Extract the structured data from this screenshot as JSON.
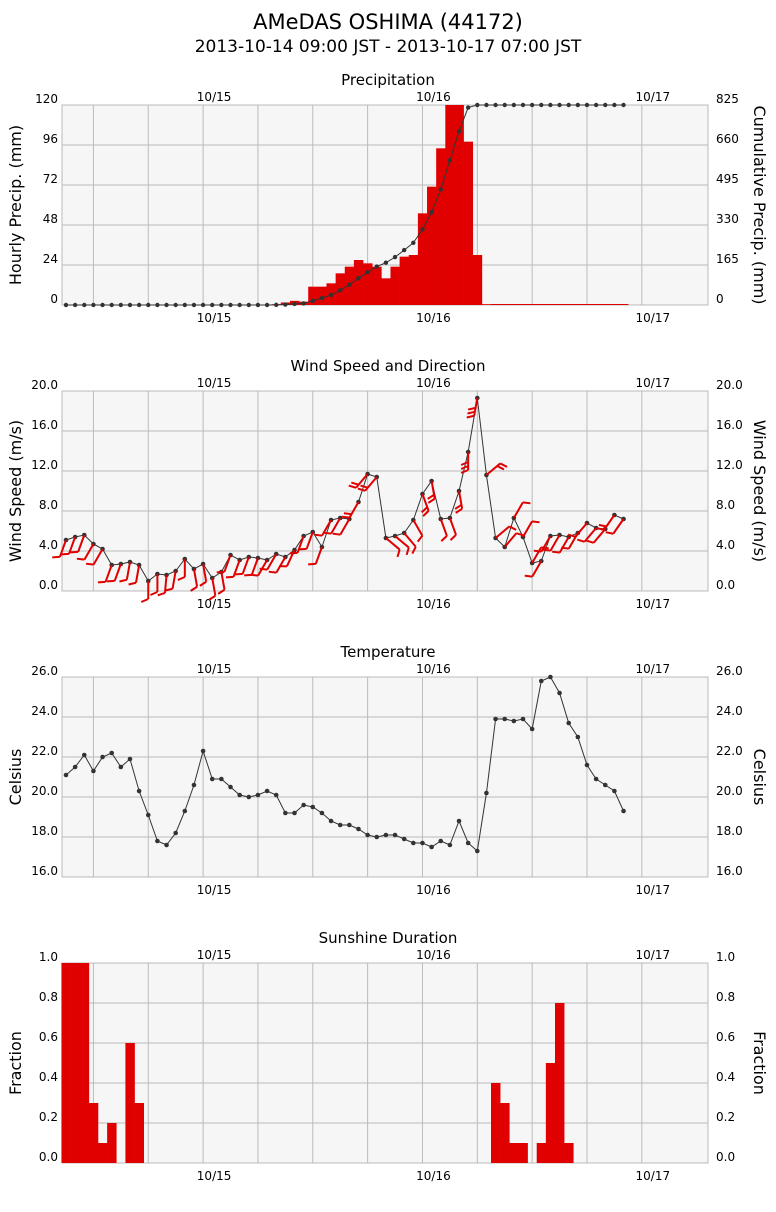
{
  "header": {
    "title": "AMeDAS OSHIMA (44172)",
    "subtitle": "2013-10-14 09:00 JST - 2013-10-17 07:00 JST"
  },
  "colors": {
    "bar": "#e00000",
    "barb": "#e00000",
    "line": "#333333",
    "plot_bg": "#f6f6f6",
    "grid": "#bbbbbb"
  },
  "chart_data": [
    {
      "type": "bar",
      "title": "Precipitation",
      "ylabel": "Hourly Precip. (mm)",
      "ylabel_right": "Cumulative Precip. (mm)",
      "hours": [
        0,
        62
      ],
      "day_ticks": [
        {
          "hour": 15,
          "label": "10/15"
        },
        {
          "hour": 39,
          "label": "10/16"
        },
        {
          "hour": 63,
          "label": "10/17"
        }
      ],
      "ylim": [
        0,
        120
      ],
      "yticks": [
        0,
        24,
        48,
        72,
        96,
        120
      ],
      "ylim_right": [
        0,
        825
      ],
      "yticks_right": [
        0,
        165,
        330,
        495,
        660,
        825
      ],
      "series": [
        {
          "name": "Hourly Precip.",
          "kind": "bar",
          "values": [
            0,
            0,
            0,
            0,
            0,
            0,
            0,
            0,
            0,
            0,
            0,
            0,
            0,
            0,
            0,
            0,
            0,
            0,
            0,
            0,
            0,
            0,
            0,
            0.5,
            1.5,
            2.5,
            2,
            11,
            11,
            13,
            19,
            23,
            27,
            25,
            23,
            16,
            23,
            29,
            30,
            55,
            71,
            94,
            120,
            120,
            98,
            30,
            0.5,
            0,
            0,
            0,
            0,
            0,
            0,
            0,
            0,
            0,
            0,
            0,
            0,
            0,
            0,
            0
          ]
        },
        {
          "name": "Cumulative Precip.",
          "kind": "line",
          "axis": "right",
          "values": [
            0,
            0,
            0,
            0,
            0,
            0,
            0,
            0,
            0,
            0,
            0,
            0,
            0,
            0,
            0,
            0,
            0,
            0,
            0,
            0,
            0,
            0,
            0,
            0.5,
            2,
            4.5,
            6.5,
            17.5,
            28.5,
            41.5,
            60.5,
            83.5,
            110.5,
            135.5,
            158.5,
            174.5,
            197.5,
            226.5,
            256.5,
            311.5,
            382.5,
            476.5,
            596.5,
            716.5,
            814.5,
            825,
            825,
            825,
            825,
            825,
            825,
            825,
            825,
            825,
            825,
            825,
            825,
            825,
            825,
            825,
            825,
            825
          ]
        }
      ]
    },
    {
      "type": "line",
      "title": "Wind Speed and Direction",
      "ylabel": "Wind Speed (m/s)",
      "ylabel_right": "Wind Speed (m/s)",
      "hours": [
        0,
        62
      ],
      "day_ticks": [
        {
          "hour": 15,
          "label": "10/15"
        },
        {
          "hour": 39,
          "label": "10/16"
        },
        {
          "hour": 63,
          "label": "10/17"
        }
      ],
      "ylim": [
        0,
        20
      ],
      "yticks": [
        "0.0",
        "4.0",
        "8.0",
        "12.0",
        "16.0",
        "20.0"
      ],
      "series": [
        {
          "name": "Wind Speed",
          "values": [
            5.1,
            5.4,
            5.6,
            4.7,
            4.2,
            2.6,
            2.7,
            2.9,
            2.6,
            1.0,
            1.7,
            1.6,
            2.0,
            3.2,
            2.2,
            2.7,
            1.3,
            1.9,
            3.6,
            3.1,
            3.4,
            3.3,
            3.1,
            3.7,
            3.4,
            4.1,
            5.5,
            5.9,
            4.4,
            7.1,
            7.3,
            7.2,
            8.9,
            11.7,
            11.4,
            5.3,
            5.5,
            5.8,
            7.1,
            9.7,
            11.0,
            7.2,
            7.3,
            10.0,
            13.9,
            19.3,
            11.6,
            5.3,
            4.4,
            7.3,
            5.4,
            2.8,
            3.0,
            5.5,
            5.6,
            5.4,
            5.8,
            6.8,
            6.3,
            6.2,
            7.6,
            7.2
          ]
        },
        {
          "name": "Wind Direction",
          "values": [
            200,
            200,
            200,
            210,
            210,
            200,
            200,
            190,
            190,
            180,
            180,
            185,
            190,
            180,
            170,
            170,
            170,
            170,
            200,
            200,
            200,
            200,
            210,
            210,
            210,
            205,
            200,
            200,
            200,
            210,
            210,
            210,
            210,
            220,
            220,
            130,
            130,
            140,
            150,
            160,
            170,
            160,
            160,
            170,
            180,
            190,
            50,
            50,
            40,
            30,
            30,
            30,
            210,
            210,
            210,
            210,
            210,
            220,
            220,
            220,
            215,
            215
          ]
        }
      ]
    },
    {
      "type": "line",
      "title": "Temperature",
      "ylabel": "Celsius",
      "ylabel_right": "Celsius",
      "hours": [
        0,
        62
      ],
      "day_ticks": [
        {
          "hour": 15,
          "label": "10/15"
        },
        {
          "hour": 39,
          "label": "10/16"
        },
        {
          "hour": 63,
          "label": "10/17"
        }
      ],
      "ylim": [
        16,
        26
      ],
      "yticks": [
        "16.0",
        "18.0",
        "20.0",
        "22.0",
        "24.0",
        "26.0"
      ],
      "series": [
        {
          "name": "Temperature",
          "values": [
            21.1,
            21.5,
            22.1,
            21.3,
            22.0,
            22.2,
            21.5,
            21.9,
            20.3,
            19.1,
            17.8,
            17.6,
            18.2,
            19.3,
            20.6,
            22.3,
            20.9,
            20.9,
            20.5,
            20.1,
            20.0,
            20.1,
            20.3,
            20.1,
            19.2,
            19.2,
            19.6,
            19.5,
            19.2,
            18.8,
            18.6,
            18.6,
            18.4,
            18.1,
            18.0,
            18.1,
            18.1,
            17.9,
            17.7,
            17.7,
            17.5,
            17.8,
            17.6,
            18.8,
            17.7,
            17.3,
            20.2,
            23.9,
            23.9,
            23.8,
            23.9,
            23.4,
            25.8,
            26.0,
            25.2,
            23.7,
            23.0,
            21.6,
            20.9,
            20.6,
            20.3,
            19.3
          ]
        }
      ]
    },
    {
      "type": "bar",
      "title": "Sunshine Duration",
      "ylabel": "Fraction",
      "ylabel_right": "Fraction",
      "hours": [
        0,
        62
      ],
      "day_ticks": [
        {
          "hour": 15,
          "label": "10/15"
        },
        {
          "hour": 39,
          "label": "10/16"
        },
        {
          "hour": 63,
          "label": "10/17"
        }
      ],
      "ylim": [
        0,
        1
      ],
      "yticks": [
        "0.0",
        "0.2",
        "0.4",
        "0.6",
        "0.8",
        "1.0"
      ],
      "series": [
        {
          "name": "Sunshine Duration",
          "values": [
            1.0,
            1.0,
            1.0,
            0.3,
            0.1,
            0.2,
            0.0,
            0.6,
            0.3,
            0,
            0,
            0,
            0,
            0,
            0,
            0,
            0,
            0,
            0,
            0,
            0,
            0,
            0,
            0,
            0,
            0,
            0,
            0,
            0,
            0,
            0,
            0,
            0,
            0,
            0,
            0,
            0,
            0,
            0,
            0,
            0,
            0,
            0,
            0,
            0,
            0,
            0,
            0.4,
            0.3,
            0.1,
            0.1,
            0.0,
            0.1,
            0.5,
            0.8,
            0.1,
            0,
            0,
            0,
            0,
            0,
            0
          ]
        }
      ]
    }
  ]
}
